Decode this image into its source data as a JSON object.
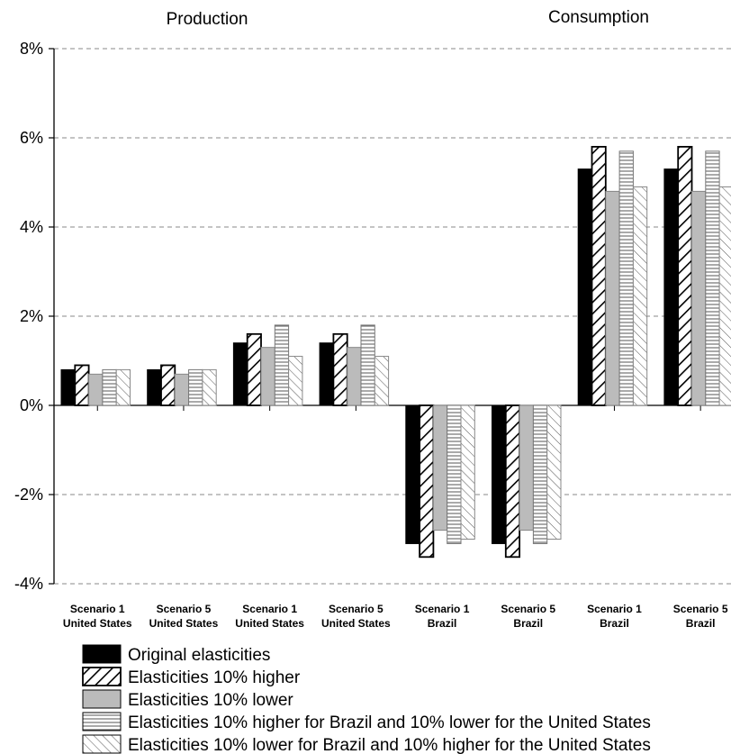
{
  "chart_data": {
    "type": "bar",
    "section_titles": [
      "Production",
      "Consumption"
    ],
    "ylim": [
      -4,
      8
    ],
    "yticks": [
      -4,
      -2,
      0,
      2,
      4,
      6,
      8
    ],
    "ytick_labels": [
      "-4%",
      "-2%",
      "0%",
      "2%",
      "4%",
      "6%",
      "8%"
    ],
    "grid": true,
    "legend_position": "bottom-left",
    "categories": [
      [
        "Scenario 1",
        "United States"
      ],
      [
        "Scenario 5",
        "United States"
      ],
      [
        "Scenario 1",
        "United States"
      ],
      [
        "Scenario 5",
        "United States"
      ],
      [
        "Scenario 1",
        "Brazil"
      ],
      [
        "Scenario 5",
        "Brazil"
      ],
      [
        "Scenario 1",
        "Brazil"
      ],
      [
        "Scenario 5",
        "Brazil"
      ]
    ],
    "series": [
      {
        "name": "Original elasticities",
        "pattern": "solid-black",
        "values": [
          0.8,
          0.8,
          1.4,
          1.4,
          -3.1,
          -3.1,
          5.3,
          5.3
        ]
      },
      {
        "name": "Elasticities 10% higher",
        "pattern": "diagonal-thick",
        "values": [
          0.9,
          0.9,
          1.6,
          1.6,
          -3.4,
          -3.4,
          5.8,
          5.8
        ]
      },
      {
        "name": "Elasticities 10% lower",
        "pattern": "solid-gray",
        "values": [
          0.7,
          0.7,
          1.3,
          1.3,
          -2.8,
          -2.8,
          4.8,
          4.8
        ]
      },
      {
        "name": "Elasticities 10% higher for Brazil and 10% lower for the United States",
        "pattern": "horizontal-lines",
        "values": [
          0.8,
          0.8,
          1.8,
          1.8,
          -3.1,
          -3.1,
          5.7,
          5.7
        ]
      },
      {
        "name": "Elasticities 10% lower for Brazil and 10% higher for the United States",
        "pattern": "back-diagonal",
        "values": [
          0.8,
          0.8,
          1.1,
          1.1,
          -3.0,
          -3.0,
          4.9,
          4.9
        ]
      }
    ]
  }
}
